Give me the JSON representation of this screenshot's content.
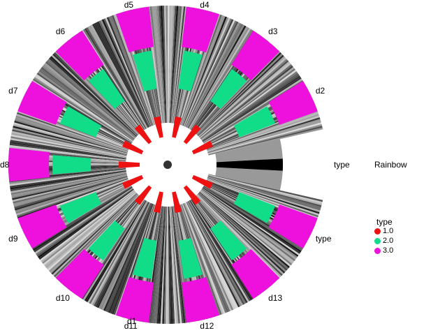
{
  "chart_data": {
    "type": "radial-heatmap",
    "sectors": [
      "d1",
      "d2",
      "d3",
      "d4",
      "d5",
      "d6",
      "d7",
      "d8",
      "d9",
      "d10",
      "d11",
      "d12",
      "d13",
      "type"
    ],
    "color_track": {
      "name": "type",
      "colors": {
        "1.0": "#ee1111",
        "2.0": "#11dd88",
        "3.0": "#ee11dd"
      }
    },
    "gradient_track": {
      "name": "Rainbow",
      "scale": "grayscale"
    },
    "legend": {
      "title": "type",
      "position": "right",
      "items": [
        {
          "label": "1.0",
          "color": "#ee1111"
        },
        {
          "label": "2.0",
          "color": "#11dd88"
        },
        {
          "label": "3.0",
          "color": "#ee11dd"
        }
      ]
    },
    "side_labels": {
      "type_label": "type",
      "palette_label": "Rainbow"
    }
  }
}
